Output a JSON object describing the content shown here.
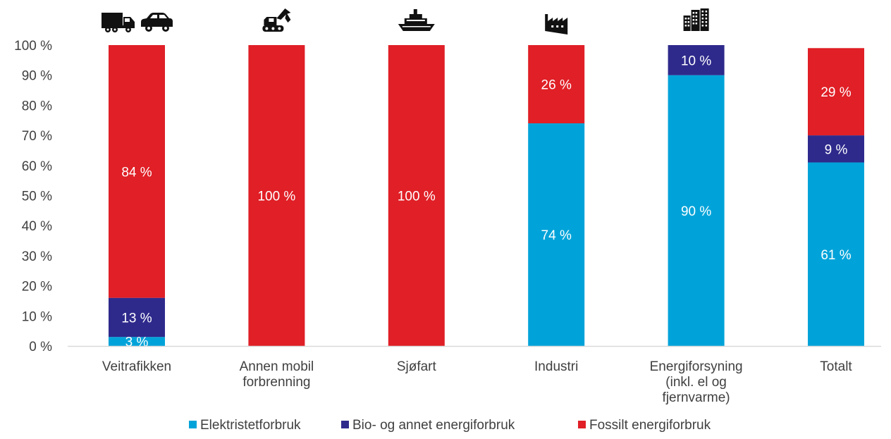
{
  "chart_data": {
    "type": "bar",
    "stacked": true,
    "ylim": [
      0,
      100
    ],
    "yticks": [
      "0 %",
      "10 %",
      "20 %",
      "30 %",
      "40 %",
      "50 %",
      "60 %",
      "70 %",
      "80 %",
      "90 %",
      "100 %"
    ],
    "categories": [
      [
        "Veitrafikken"
      ],
      [
        "Annen mobil",
        "forbrenning"
      ],
      [
        "Sjøfart"
      ],
      [
        "Industri"
      ],
      [
        "Energiforsyning",
        "(inkl. el og",
        "fjernvarme)"
      ],
      [
        "Totalt"
      ]
    ],
    "category_icons": [
      [
        "truck-icon",
        "car-icon"
      ],
      [
        "excavator-icon"
      ],
      [
        "ship-icon"
      ],
      [
        "factory-icon"
      ],
      [
        "buildings-icon"
      ],
      []
    ],
    "series": [
      {
        "name": "Elektristetforbruk",
        "color": "#00a3d9",
        "values": [
          3,
          0,
          0,
          74,
          90,
          61
        ],
        "labels": [
          "3 %",
          "",
          "",
          "74 %",
          "90 %",
          "61 %"
        ]
      },
      {
        "name": "Bio- og annet energiforbruk",
        "color": "#2e2a8c",
        "values": [
          13,
          0,
          0,
          0,
          10,
          9
        ],
        "labels": [
          "13 %",
          "",
          "",
          "",
          "10 %",
          "9 %"
        ]
      },
      {
        "name": "Fossilt energiforbruk",
        "color": "#e01f26",
        "values": [
          84,
          100,
          100,
          26,
          0,
          29
        ],
        "labels": [
          "84 %",
          "100 %",
          "100 %",
          "26 %",
          "",
          "29 %"
        ]
      }
    ],
    "legend_position": "bottom",
    "grid": false
  }
}
